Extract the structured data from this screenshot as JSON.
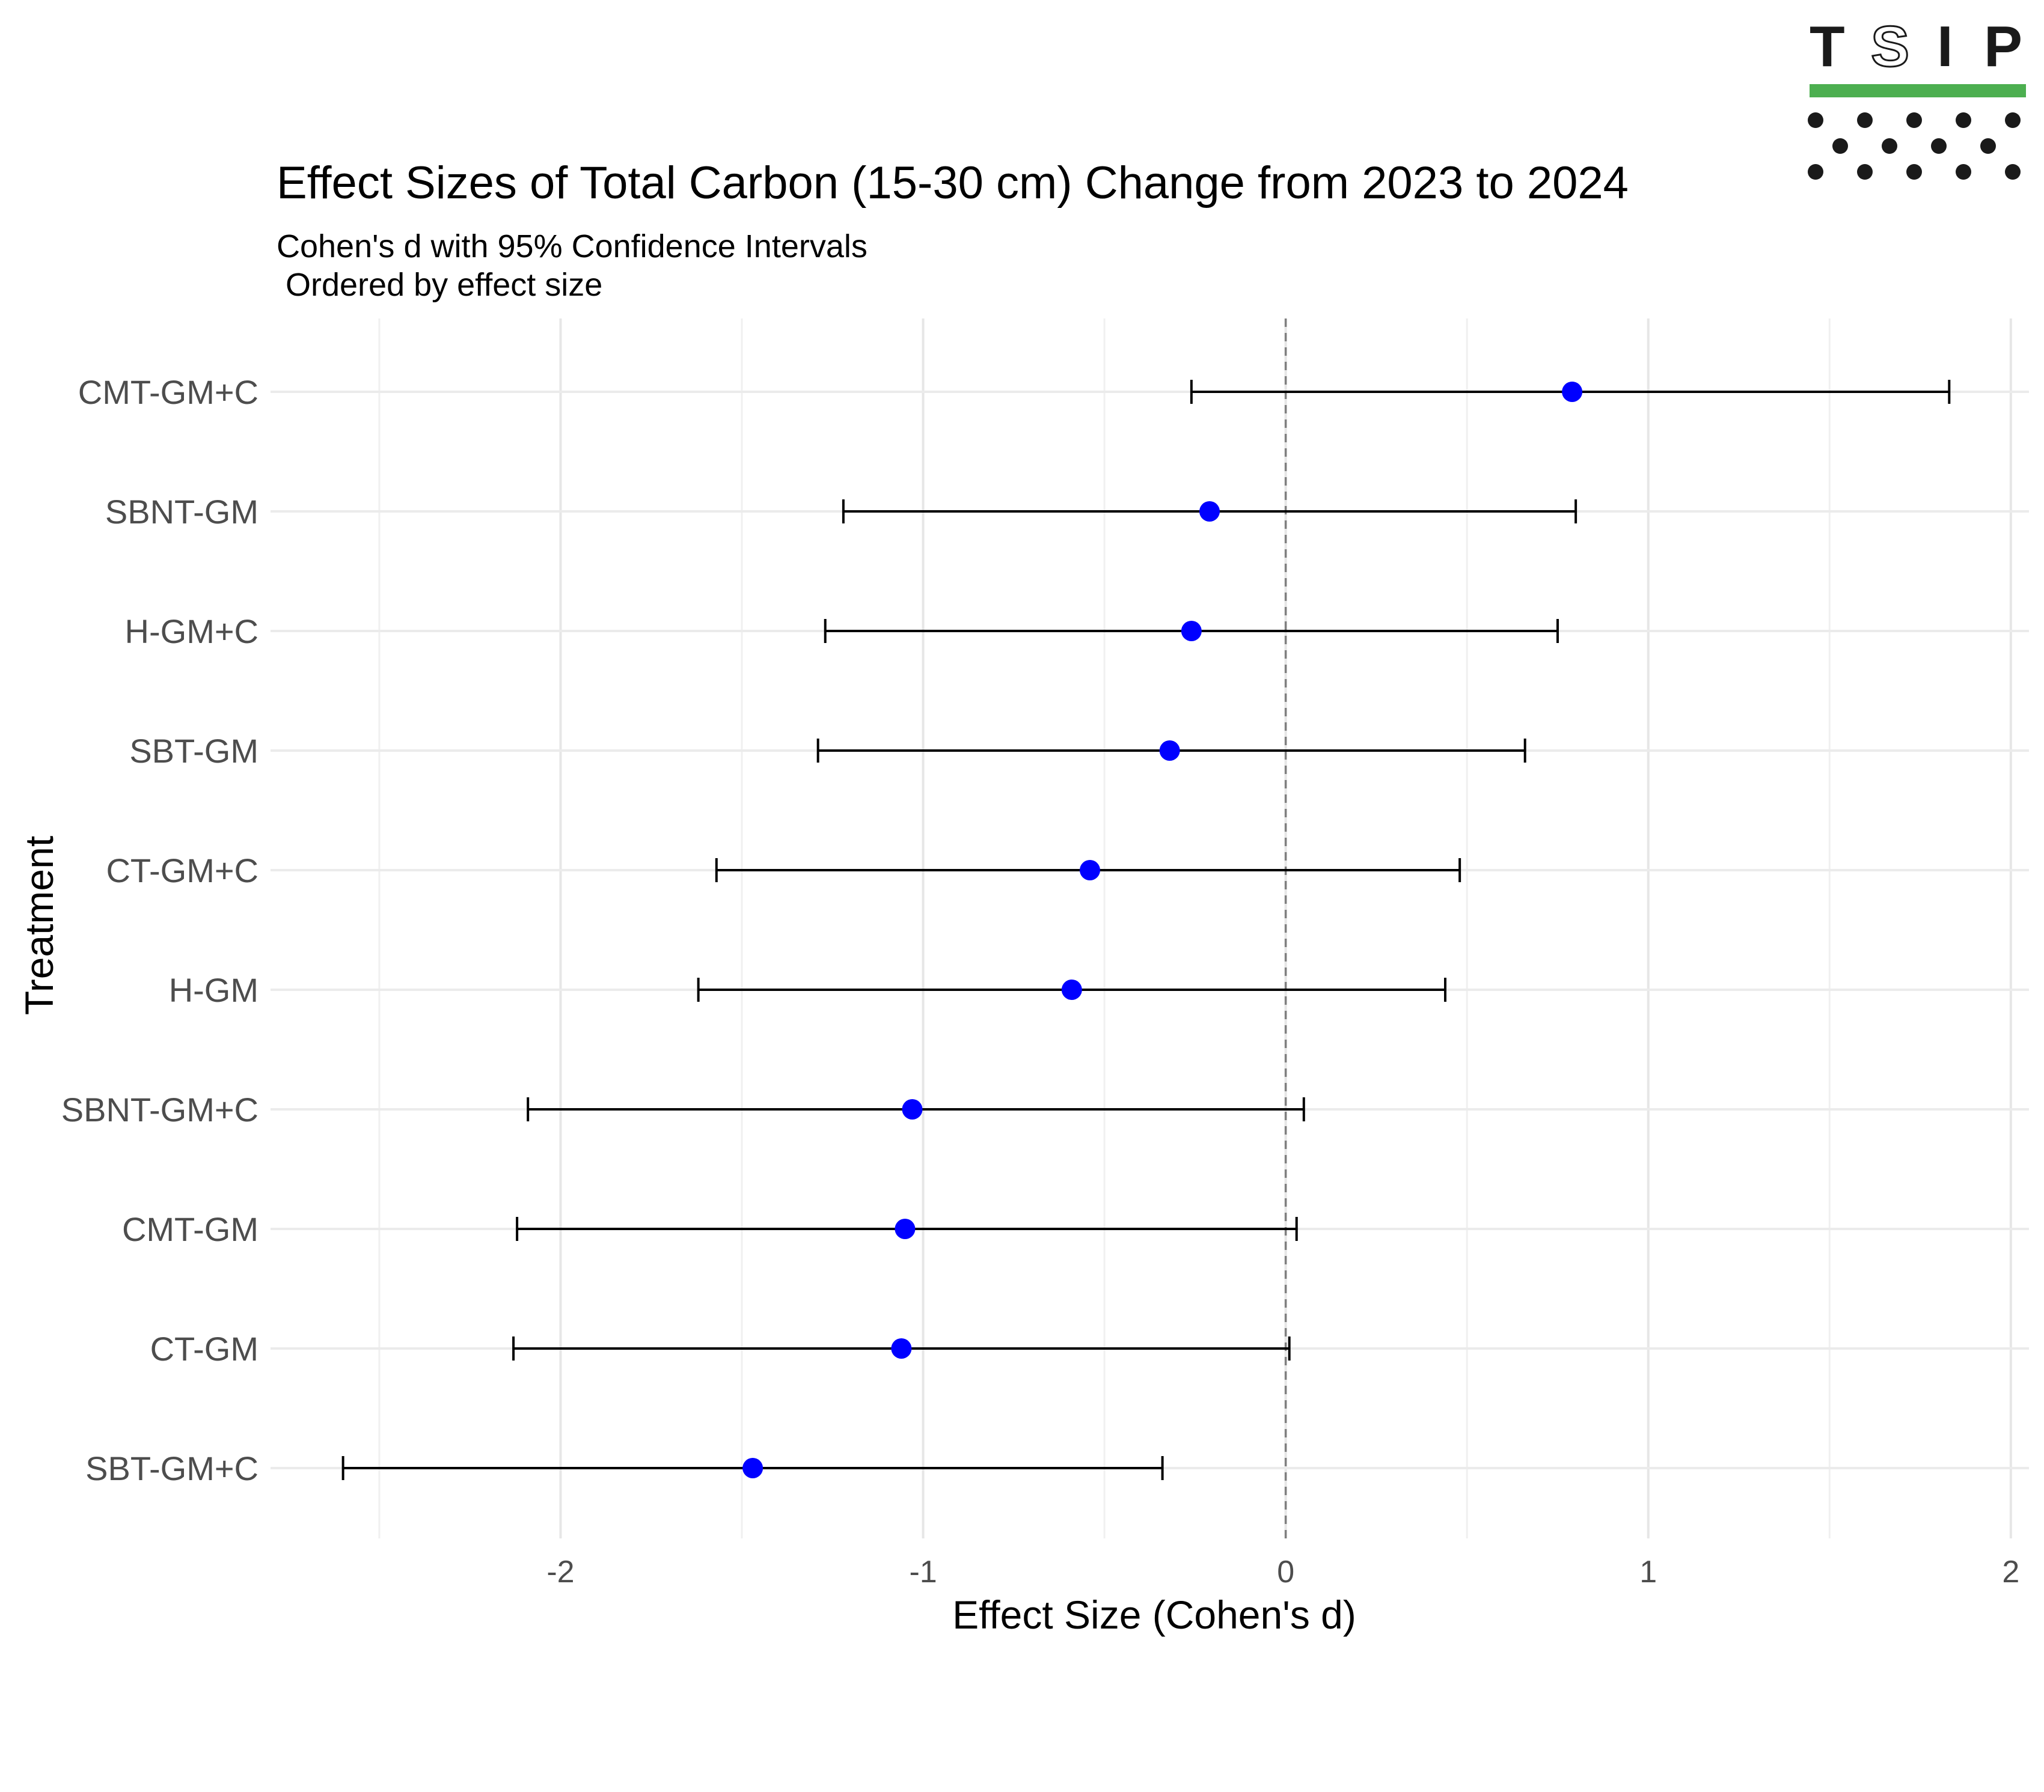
{
  "logo": {
    "letters": [
      "T",
      "S",
      "I",
      "P"
    ],
    "bar_color": "#4CAF50",
    "dot_color": "#1a1a1a"
  },
  "chart_data": {
    "type": "forest",
    "title": "Effect Sizes of Total Carbon (15-30 cm) Change from 2023 to 2024",
    "subtitle": [
      "Cohen's d with 95% Confidence Intervals",
      " Ordered by effect size"
    ],
    "xlabel": "Effect Size (Cohen's d)",
    "ylabel": "Treatment",
    "xlim": [
      -2.8,
      2.05
    ],
    "x_ticks": [
      -2,
      -1,
      0,
      1,
      2
    ],
    "x_tick_labels": [
      "-2",
      "-1",
      "0",
      "1",
      "2"
    ],
    "reference_line": 0,
    "grid": true,
    "point_color": "#0000FF",
    "categories": [
      "CMT-GM+C",
      "SBNT-GM",
      "H-GM+C",
      "SBT-GM",
      "CT-GM+C",
      "H-GM",
      "SBNT-GM+C",
      "CMT-GM",
      "CT-GM",
      "SBT-GM+C"
    ],
    "estimates": [
      0.79,
      -0.21,
      -0.26,
      -0.32,
      -0.54,
      -0.59,
      -1.03,
      -1.05,
      -1.06,
      -1.47
    ],
    "ci_lower": [
      -0.26,
      -1.22,
      -1.27,
      -1.29,
      -1.57,
      -1.62,
      -2.09,
      -2.12,
      -2.13,
      -2.6
    ],
    "ci_upper": [
      1.83,
      0.8,
      0.75,
      0.66,
      0.48,
      0.44,
      0.05,
      0.03,
      0.01,
      -0.34
    ]
  }
}
